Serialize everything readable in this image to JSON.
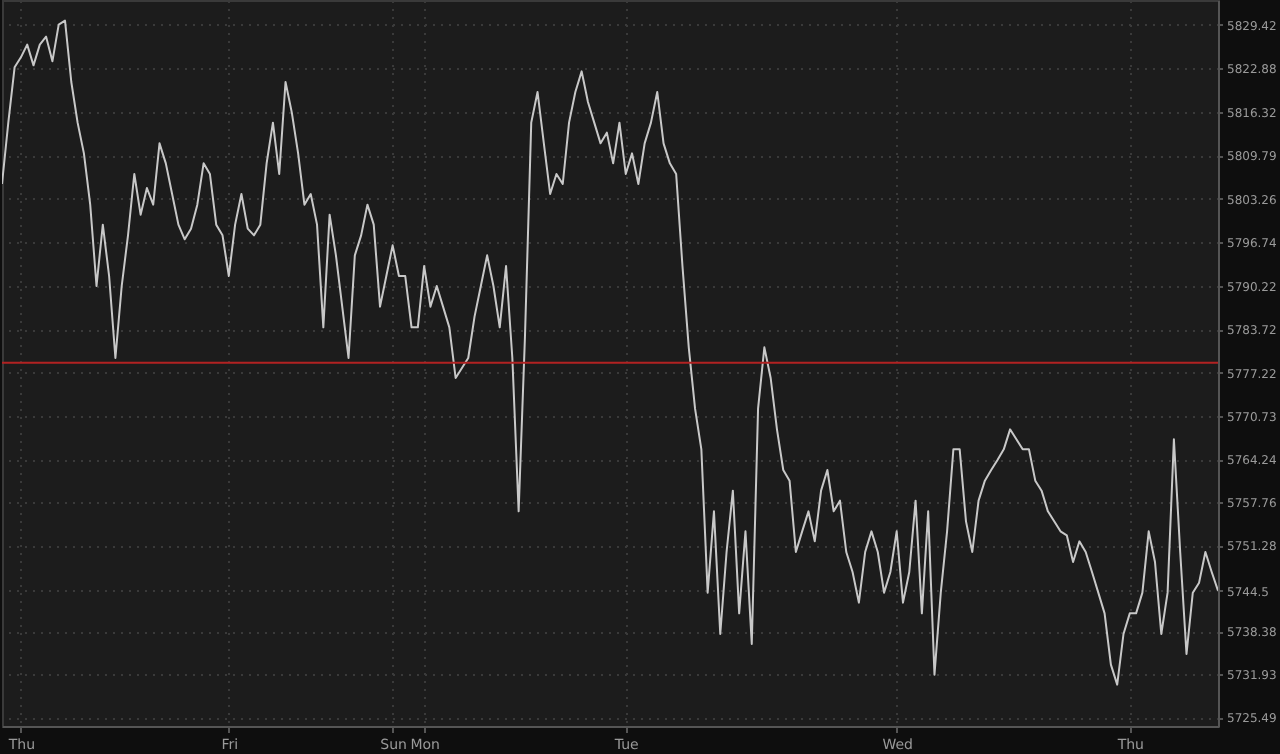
{
  "chart_data": {
    "type": "line",
    "categories": [
      null,
      null,
      null,
      "Thu",
      null,
      null,
      null,
      null,
      null,
      null,
      null,
      null,
      null,
      null,
      null,
      null,
      null,
      null,
      null,
      null,
      null,
      null,
      null,
      null,
      null,
      null,
      null,
      null,
      null,
      null,
      null,
      null,
      null,
      null,
      null,
      null,
      "Fri",
      null,
      null,
      null,
      null,
      null,
      null,
      null,
      null,
      null,
      null,
      null,
      null,
      null,
      null,
      null,
      null,
      null,
      null,
      null,
      null,
      null,
      null,
      null,
      null,
      null,
      "Sun",
      null,
      null,
      null,
      null,
      "Mon",
      null,
      null,
      null,
      null,
      null,
      null,
      null,
      null,
      null,
      null,
      null,
      null,
      null,
      null,
      null,
      null,
      null,
      null,
      null,
      null,
      null,
      null,
      null,
      null,
      null,
      null,
      null,
      null,
      null,
      null,
      null,
      "Tue",
      null,
      null,
      null,
      null,
      null,
      null,
      null,
      null,
      null,
      null,
      null,
      null,
      null,
      null,
      null,
      null,
      null,
      null,
      null,
      null,
      null,
      null,
      null,
      null,
      null,
      null,
      null,
      null,
      null,
      null,
      null,
      null,
      null,
      null,
      null,
      null,
      null,
      null,
      null,
      null,
      null,
      null,
      "Wed",
      null,
      null,
      null,
      null,
      null,
      null,
      null,
      null,
      null,
      null,
      null,
      null,
      null,
      null,
      null,
      null,
      null,
      null,
      null,
      null,
      null,
      null,
      null,
      null,
      null,
      null,
      null,
      null,
      null,
      null,
      null,
      null,
      null,
      null,
      null,
      null,
      "Thu",
      null,
      null,
      null,
      null,
      null,
      null,
      null,
      null,
      null,
      null,
      null,
      null,
      null,
      null
    ],
    "series": [
      {
        "color": "#c8c8c8",
        "values": [
          5805.5,
          5814.7,
          5823.0,
          5824.5,
          5826.4,
          5823.3,
          5826.4,
          5827.6,
          5823.9,
          5829.4,
          5830.0,
          5820.8,
          5814.7,
          5810.1,
          5802.4,
          5790.2,
          5799.4,
          5791.7,
          5779.4,
          5790.2,
          5797.8,
          5807.0,
          5800.9,
          5804.9,
          5802.4,
          5811.6,
          5808.6,
          5804.0,
          5799.4,
          5797.2,
          5798.8,
          5802.4,
          5808.6,
          5807.0,
          5799.4,
          5797.8,
          5791.7,
          5799.4,
          5804.0,
          5798.8,
          5797.8,
          5799.4,
          5808.6,
          5814.7,
          5807.0,
          5820.8,
          5816.2,
          5810.1,
          5802.4,
          5804.0,
          5799.4,
          5784.0,
          5800.9,
          5794.8,
          5787.1,
          5779.4,
          5794.8,
          5797.8,
          5802.4,
          5799.4,
          5787.1,
          5791.7,
          5796.3,
          5791.7,
          5791.7,
          5784.0,
          5784.0,
          5793.2,
          5787.1,
          5790.2,
          5787.1,
          5784.0,
          5776.4,
          5777.9,
          5779.4,
          5785.6,
          5790.2,
          5794.8,
          5790.2,
          5784.0,
          5793.2,
          5779.4,
          5756.4,
          5782.5,
          5814.7,
          5819.3,
          5811.6,
          5804.0,
          5807.0,
          5805.5,
          5814.7,
          5819.3,
          5822.4,
          5817.8,
          5814.7,
          5811.6,
          5813.2,
          5808.6,
          5814.7,
          5807.0,
          5810.1,
          5805.5,
          5811.6,
          5814.7,
          5819.3,
          5811.6,
          5808.6,
          5807.0,
          5793.2,
          5781.0,
          5771.8,
          5765.7,
          5744.2,
          5756.4,
          5738.0,
          5750.3,
          5759.5,
          5741.1,
          5753.4,
          5736.5,
          5771.8,
          5781.0,
          5776.4,
          5768.7,
          5762.6,
          5761.0,
          5750.3,
          5753.4,
          5756.4,
          5751.9,
          5759.5,
          5762.6,
          5756.4,
          5758.0,
          5750.3,
          5747.3,
          5742.7,
          5750.3,
          5753.4,
          5750.3,
          5744.2,
          5747.3,
          5753.4,
          5742.7,
          5747.3,
          5758.0,
          5741.1,
          5756.4,
          5731.9,
          5744.2,
          5753.4,
          5765.7,
          5765.7,
          5754.9,
          5750.3,
          5758.0,
          5761.0,
          5762.6,
          5764.1,
          5765.7,
          5768.7,
          5767.2,
          5765.7,
          5765.7,
          5761.0,
          5759.5,
          5756.4,
          5754.9,
          5753.4,
          5752.8,
          5748.8,
          5751.9,
          5750.3,
          5747.3,
          5744.2,
          5741.1,
          5733.4,
          5730.4,
          5738.0,
          5741.1,
          5741.1,
          5744.2,
          5753.4,
          5748.8,
          5738.0,
          5744.2,
          5767.2,
          5750.3,
          5735.0,
          5744.2,
          5745.7,
          5750.3,
          5747.3,
          5744.5
        ]
      }
    ],
    "ylim": [
      5724.2,
      5833.1
    ],
    "yticks": [
      5829.42,
      5822.88,
      5816.32,
      5809.79,
      5803.26,
      5796.74,
      5790.22,
      5783.72,
      5777.22,
      5770.73,
      5764.24,
      5757.76,
      5751.28,
      5744.5,
      5738.38,
      5731.93,
      5725.49
    ],
    "ref_lines": [
      {
        "axis": "y",
        "value": 5778.7,
        "color": "#b22222"
      }
    ],
    "grid": true,
    "marker": "none",
    "line_style": "solid"
  }
}
